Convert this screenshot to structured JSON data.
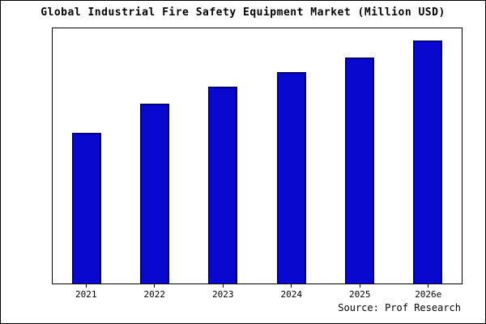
{
  "chart_data": {
    "type": "bar",
    "title": "Global Industrial Fire Safety Equipment Market (Million USD)",
    "categories": [
      "2021",
      "2022",
      "2023",
      "2024",
      "2025",
      "2026e"
    ],
    "values": [
      62,
      74,
      81,
      87,
      93,
      100
    ],
    "xlabel": "",
    "ylabel": "",
    "ylim": [
      0,
      105
    ],
    "bar_color": "#0808cf",
    "bar_border_color": "#00007a",
    "grid": false,
    "legend": "none",
    "source": "Source: Prof Research"
  }
}
